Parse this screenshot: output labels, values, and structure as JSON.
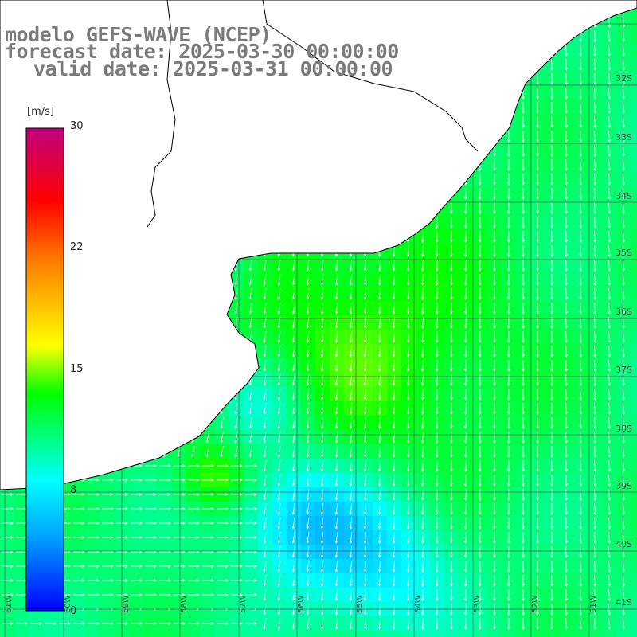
{
  "header": {
    "line1": "modelo GEFS-WAVE (NCEP)",
    "line2": "forecast date: 2025-03-30 00:00:00",
    "line3": "valid date: 2025-03-31 00:00:00"
  },
  "colorbar": {
    "unit": "[m/s]",
    "ticks": [
      "30",
      "22",
      "15",
      "8",
      "0"
    ],
    "min": 0,
    "max": 30,
    "colors": [
      "#0000ff",
      "#00a0ff",
      "#00ffff",
      "#00ff00",
      "#ffff00",
      "#ff8000",
      "#ff0000",
      "#c00080"
    ]
  },
  "lat_labels": [
    "32S",
    "33S",
    "34S",
    "35S",
    "36S",
    "37S",
    "38S",
    "39S",
    "40S",
    "41S"
  ],
  "lon_labels": [
    "61W",
    "60W",
    "59W",
    "58W",
    "57W",
    "56W",
    "55W",
    "54W",
    "53W",
    "52W",
    "51W"
  ],
  "field": {
    "variable": "wind speed",
    "unit": "m/s",
    "water_color": "#32ff32",
    "land_color": "#ffffff"
  }
}
